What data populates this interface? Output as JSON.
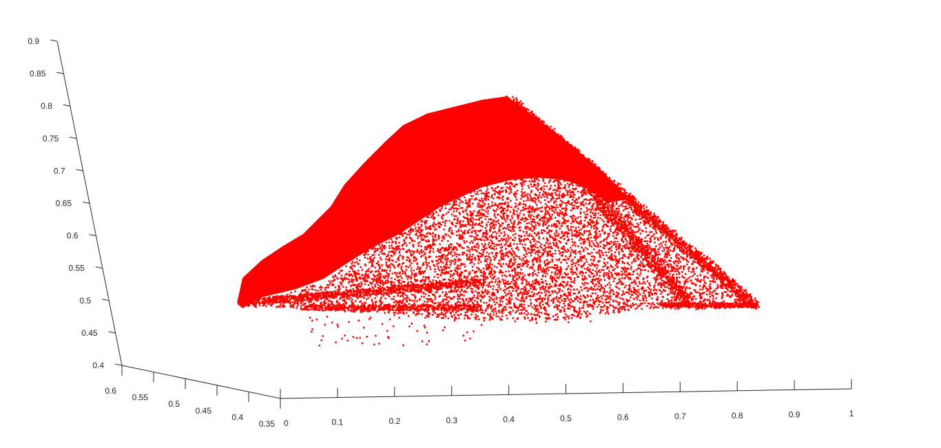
{
  "chart_data": {
    "type": "scatter",
    "view": "3d",
    "title": "",
    "xlabel": "",
    "ylabel": "",
    "zlabel": "",
    "xlim": [
      0,
      1
    ],
    "ylim": [
      0.35,
      0.6
    ],
    "zlim": [
      0.4,
      0.9
    ],
    "grid": false,
    "marker_color": "#ff0000",
    "x_ticks": [
      {
        "value": 0,
        "label": "0"
      },
      {
        "value": 0.1,
        "label": "0.1"
      },
      {
        "value": 0.2,
        "label": "0.2"
      },
      {
        "value": 0.3,
        "label": "0.3"
      },
      {
        "value": 0.4,
        "label": "0.4"
      },
      {
        "value": 0.5,
        "label": "0.5"
      },
      {
        "value": 0.6,
        "label": "0.6"
      },
      {
        "value": 0.7,
        "label": "0.7"
      },
      {
        "value": 0.8,
        "label": "0.8"
      },
      {
        "value": 0.9,
        "label": "0.9"
      },
      {
        "value": 1,
        "label": "1"
      }
    ],
    "y_ticks": [
      {
        "value": 0.35,
        "label": "0.35"
      },
      {
        "value": 0.4,
        "label": "0.4"
      },
      {
        "value": 0.45,
        "label": "0.45"
      },
      {
        "value": 0.5,
        "label": "0.5"
      },
      {
        "value": 0.55,
        "label": "0.55"
      },
      {
        "value": 0.6,
        "label": "0.6"
      }
    ],
    "z_ticks": [
      {
        "value": 0.4,
        "label": "0.4"
      },
      {
        "value": 0.45,
        "label": "0.45"
      },
      {
        "value": 0.5,
        "label": "0.5"
      },
      {
        "value": 0.55,
        "label": "0.55"
      },
      {
        "value": 0.6,
        "label": "0.6"
      },
      {
        "value": 0.65,
        "label": "0.65"
      },
      {
        "value": 0.7,
        "label": "0.7"
      },
      {
        "value": 0.75,
        "label": "0.75"
      },
      {
        "value": 0.8,
        "label": "0.8"
      },
      {
        "value": 0.85,
        "label": "0.85"
      },
      {
        "value": 0.9,
        "label": "0.9"
      }
    ]
  }
}
